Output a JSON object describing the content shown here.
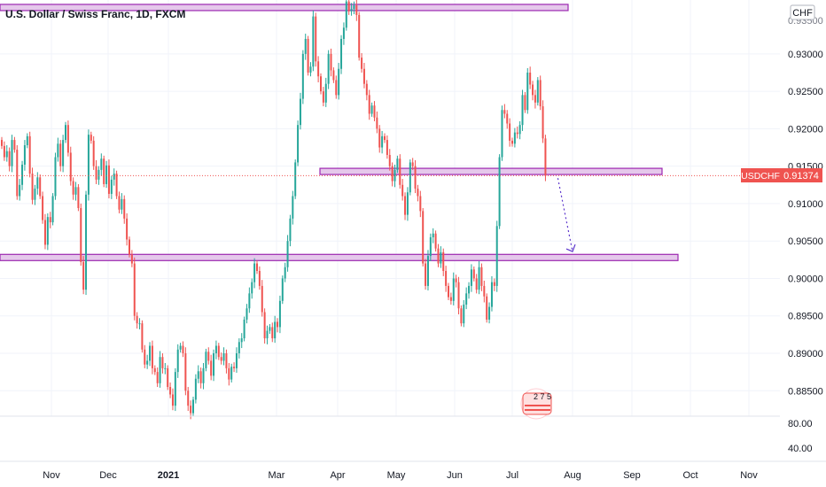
{
  "chart_title": "U.S. Dollar / Swiss Franc, 1D, FXCM",
  "currency_label": "CHF",
  "top_cut_label": "0.93500",
  "price_tag": {
    "symbol": "USDCHF",
    "value": "0.91374"
  },
  "badge": {
    "text": "2 7 5"
  },
  "colors": {
    "up": "#26a69a",
    "down": "#ef5350",
    "zone_fill": "#e1bee7",
    "zone_stroke": "#9c27b0",
    "arrow": "#5c35cc",
    "price_line": "#ef5350"
  },
  "chart_data": {
    "type": "candlestick",
    "x_ticks": [
      "Nov",
      "Dec",
      "2021",
      "Mar",
      "Apr",
      "May",
      "Jun",
      "Jul",
      "Aug",
      "Sep",
      "Oct",
      "Nov"
    ],
    "y_ticks": [
      "0.93000",
      "0.92500",
      "0.92000",
      "0.91500",
      "0.91000",
      "0.90500",
      "0.90000",
      "0.89500",
      "0.89000",
      "0.88500"
    ],
    "ylim": [
      0.8816,
      0.9372
    ],
    "volume_ticks": [
      "80.00",
      "40.00"
    ],
    "current_price": 0.91374,
    "horizontal_zones": [
      {
        "name": "top",
        "price": 0.9362,
        "from": "Oct 2020",
        "to": "Jul 2021"
      },
      {
        "name": "middle",
        "price": 0.9143,
        "from": "Mar 2021",
        "to": "Sep 2021"
      },
      {
        "name": "lower",
        "price": 0.9028,
        "from": "Oct 2020",
        "to": "Sep 2021"
      }
    ],
    "projection": {
      "from_price": 0.9134,
      "to_price": 0.9036,
      "style": "dotted arrow"
    },
    "closes": [
      0.9177,
      0.9162,
      0.917,
      0.915,
      0.9185,
      0.9172,
      0.911,
      0.9125,
      0.9152,
      0.9178,
      0.919,
      0.914,
      0.9105,
      0.912,
      0.9135,
      0.911,
      0.9078,
      0.9045,
      0.9082,
      0.9075,
      0.911,
      0.9162,
      0.918,
      0.915,
      0.9185,
      0.9205,
      0.9168,
      0.913,
      0.9112,
      0.9122,
      0.9094,
      0.9022,
      0.8985,
      0.9112,
      0.9192,
      0.9184,
      0.915,
      0.9132,
      0.9145,
      0.916,
      0.9126,
      0.9151,
      0.9113,
      0.9132,
      0.914,
      0.911,
      0.9092,
      0.9106,
      0.908,
      0.9052,
      0.9032,
      0.902,
      0.895,
      0.894,
      0.894,
      0.8905,
      0.8885,
      0.889,
      0.891,
      0.888,
      0.8875,
      0.886,
      0.8895,
      0.888,
      0.888,
      0.8855,
      0.8845,
      0.883,
      0.8875,
      0.8905,
      0.891,
      0.89,
      0.885,
      0.883,
      0.882,
      0.8838,
      0.8866,
      0.8876,
      0.886,
      0.888,
      0.8902,
      0.889,
      0.887,
      0.89,
      0.891,
      0.8895,
      0.889,
      0.89,
      0.888,
      0.8865,
      0.8882,
      0.888,
      0.89,
      0.8915,
      0.892,
      0.8945,
      0.896,
      0.898,
      0.8995,
      0.902,
      0.901,
      0.899,
      0.8955,
      0.892,
      0.893,
      0.8935,
      0.892,
      0.8942,
      0.8935,
      0.897,
      0.9,
      0.9015,
      0.905,
      0.908,
      0.911,
      0.9155,
      0.9205,
      0.924,
      0.93,
      0.932,
      0.9275,
      0.9283,
      0.935,
      0.929,
      0.927,
      0.925,
      0.9235,
      0.926,
      0.93,
      0.9278,
      0.9265,
      0.9245,
      0.928,
      0.932,
      0.9335,
      0.937,
      0.9357,
      0.936,
      0.9365,
      0.9352,
      0.9295,
      0.928,
      0.926,
      0.9245,
      0.922,
      0.9231,
      0.9215,
      0.92,
      0.9175,
      0.919,
      0.9185,
      0.9165,
      0.915,
      0.913,
      0.9145,
      0.916,
      0.9125,
      0.911,
      0.9085,
      0.9115,
      0.9155,
      0.915,
      0.912,
      0.911,
      0.909,
      0.902,
      0.899,
      0.903,
      0.9055,
      0.906,
      0.904,
      0.902,
      0.9035,
      0.901,
      0.899,
      0.8975,
      0.897,
      0.9,
      0.8995,
      0.896,
      0.894,
      0.8965,
      0.898,
      0.899,
      0.9012,
      0.9,
      0.8985,
      0.9015,
      0.899,
      0.8976,
      0.8945,
      0.8962,
      0.8995,
      0.899,
      0.907,
      0.9162,
      0.9225,
      0.922,
      0.9207,
      0.9184,
      0.918,
      0.9195,
      0.9193,
      0.9205,
      0.9245,
      0.9225,
      0.9275,
      0.9259,
      0.9245,
      0.9235,
      0.9265,
      0.923,
      0.9187,
      0.9137
    ]
  }
}
